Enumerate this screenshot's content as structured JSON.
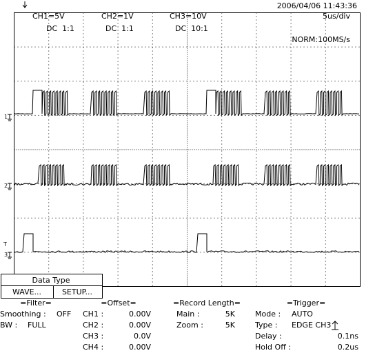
{
  "header": {
    "timestamp": "2006/04/06  11:43:36"
  },
  "channels": [
    {
      "scale": "CH1=5V",
      "coupling": "DC  1:1"
    },
    {
      "scale": "CH2=1V",
      "coupling": "DC  1:1"
    },
    {
      "scale": "CH3=10V",
      "coupling": "DC  10:1"
    }
  ],
  "timebase": "5us/div",
  "acquisition": "NORM:100MS/s",
  "markers": [
    "1",
    "2",
    "T",
    "3"
  ],
  "menu": {
    "title": "Data Type",
    "buttons": [
      "WAVE...",
      "SETUP..."
    ]
  },
  "filter": {
    "title": "=Filter=",
    "rows": [
      {
        "label": "Smoothing :",
        "value": "OFF"
      },
      {
        "label": "BW :",
        "value": "FULL"
      }
    ]
  },
  "offset": {
    "title": "=Offset=",
    "rows": [
      {
        "label": "CH1 :",
        "value": "0.00V"
      },
      {
        "label": "CH2 :",
        "value": "0.00V"
      },
      {
        "label": "CH3 :",
        "value": "0.0V"
      },
      {
        "label": "CH4 :",
        "value": "0.00V"
      }
    ]
  },
  "record_length": {
    "title": "=Record Length=",
    "rows": [
      {
        "label": "Main :",
        "value": "5K"
      },
      {
        "label": "Zoom :",
        "value": "5K"
      }
    ]
  },
  "trigger": {
    "title": "=Trigger=",
    "rows": [
      {
        "label": "Mode :",
        "value": "AUTO"
      },
      {
        "label": "Type :",
        "value": "EDGE CH3"
      },
      {
        "label": "Delay :",
        "value": "0.1ns"
      },
      {
        "label": "Hold Off :",
        "value": "0.2us"
      }
    ]
  }
}
